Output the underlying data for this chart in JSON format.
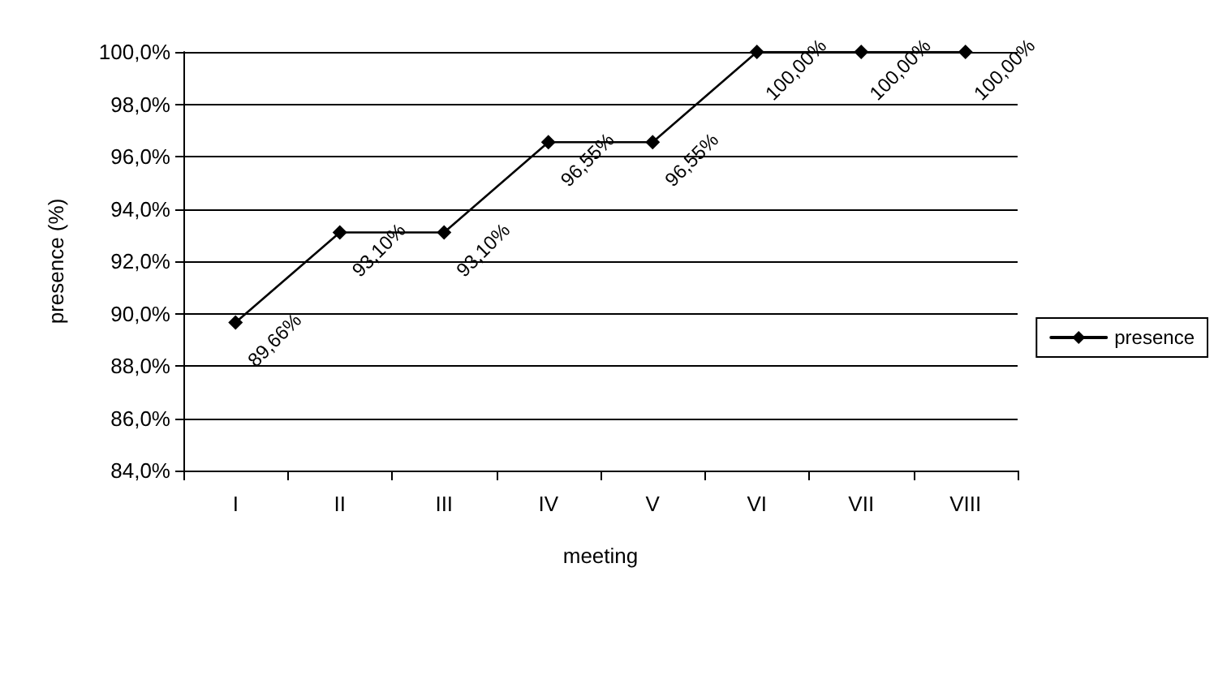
{
  "chart_data": {
    "type": "line",
    "xlabel": "meeting",
    "ylabel": "presence (%)",
    "categories": [
      "I",
      "II",
      "III",
      "IV",
      "V",
      "VI",
      "VII",
      "VIII"
    ],
    "series": [
      {
        "name": "presence",
        "color": "#000000",
        "values": [
          89.66,
          93.1,
          93.1,
          96.55,
          96.55,
          100,
          100,
          100
        ],
        "value_labels": [
          "89,66%",
          "93,10%",
          "93,10%",
          "96,55%",
          "96,55%",
          "100,00%",
          "100,00%",
          "100,00%"
        ]
      }
    ],
    "ylim": [
      84,
      100
    ],
    "yticks": [
      {
        "value": 84,
        "label": "84,0%"
      },
      {
        "value": 86,
        "label": "86,0%"
      },
      {
        "value": 88,
        "label": "88,0%"
      },
      {
        "value": 90,
        "label": "90,0%"
      },
      {
        "value": 92,
        "label": "92,0%"
      },
      {
        "value": 94,
        "label": "94,0%"
      },
      {
        "value": 96,
        "label": "96,0%"
      },
      {
        "value": 98,
        "label": "98,0%"
      },
      {
        "value": 100,
        "label": "100,0%"
      }
    ],
    "grid": "y",
    "legend": "right",
    "marker": "diamond",
    "line_style": "solid"
  }
}
